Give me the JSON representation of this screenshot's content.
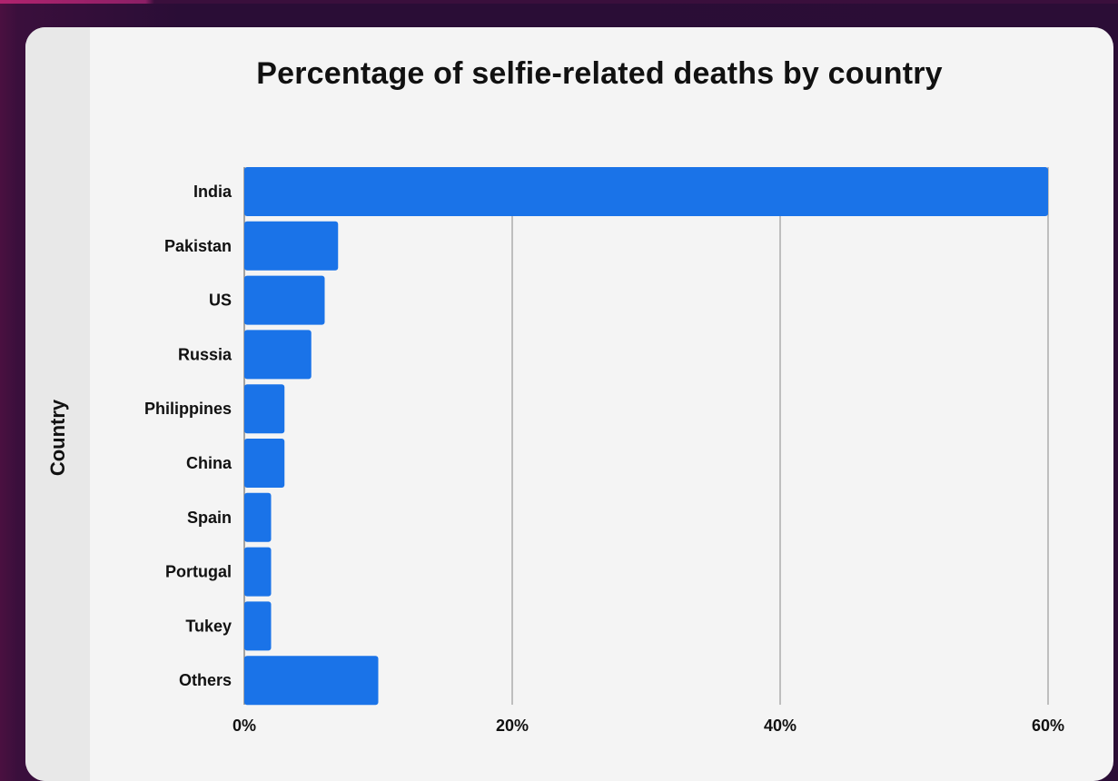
{
  "chart_data": {
    "type": "bar",
    "orientation": "horizontal",
    "title": "Percentage of selfie-related deaths by country",
    "ylabel": "Country",
    "xlabel": "",
    "categories": [
      "India",
      "Pakistan",
      "US",
      "Russia",
      "Philippines",
      "China",
      "Spain",
      "Portugal",
      "Tukey",
      "Others"
    ],
    "values": [
      60,
      7,
      6,
      5,
      3,
      3,
      2,
      2,
      2,
      10
    ],
    "xlim": [
      0,
      60
    ],
    "xticks": [
      0,
      20,
      40,
      60
    ],
    "xtick_labels": [
      "0%",
      "20%",
      "40%",
      "60%"
    ],
    "grid": "vertical",
    "bar_color": "#1a73e8"
  }
}
